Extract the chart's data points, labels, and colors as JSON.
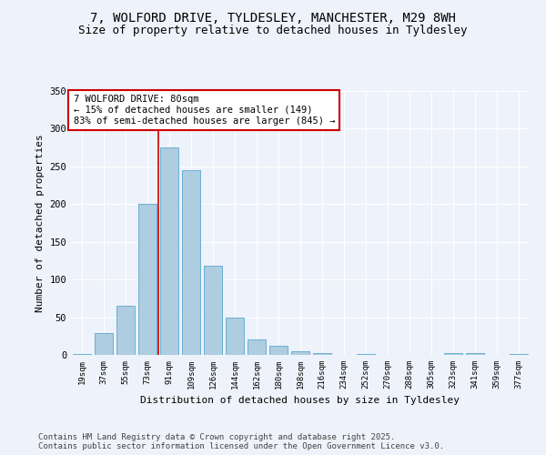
{
  "title_line1": "7, WOLFORD DRIVE, TYLDESLEY, MANCHESTER, M29 8WH",
  "title_line2": "Size of property relative to detached houses in Tyldesley",
  "xlabel": "Distribution of detached houses by size in Tyldesley",
  "ylabel": "Number of detached properties",
  "categories": [
    "19sqm",
    "37sqm",
    "55sqm",
    "73sqm",
    "91sqm",
    "109sqm",
    "126sqm",
    "144sqm",
    "162sqm",
    "180sqm",
    "198sqm",
    "216sqm",
    "234sqm",
    "252sqm",
    "270sqm",
    "288sqm",
    "305sqm",
    "323sqm",
    "341sqm",
    "359sqm",
    "377sqm"
  ],
  "values": [
    1,
    29,
    65,
    200,
    275,
    245,
    118,
    50,
    20,
    12,
    5,
    3,
    0,
    1,
    0,
    0,
    0,
    3,
    2,
    0,
    1
  ],
  "bar_color": "#aecde0",
  "bar_edge_color": "#6aafd4",
  "background_color": "#eef2fa",
  "grid_color": "#ffffff",
  "vline_x": 3.5,
  "vline_color": "#cc0000",
  "annotation_text": "7 WOLFORD DRIVE: 80sqm\n← 15% of detached houses are smaller (149)\n83% of semi-detached houses are larger (845) →",
  "annotation_box_color": "#ffffff",
  "annotation_box_edge": "#cc0000",
  "ylim": [
    0,
    350
  ],
  "yticks": [
    0,
    50,
    100,
    150,
    200,
    250,
    300,
    350
  ],
  "footer_text": "Contains HM Land Registry data © Crown copyright and database right 2025.\nContains public sector information licensed under the Open Government Licence v3.0.",
  "title_fontsize": 10,
  "subtitle_fontsize": 9,
  "annotation_fontsize": 7.5,
  "footer_fontsize": 6.5,
  "ylabel_fontsize": 8,
  "xlabel_fontsize": 8
}
